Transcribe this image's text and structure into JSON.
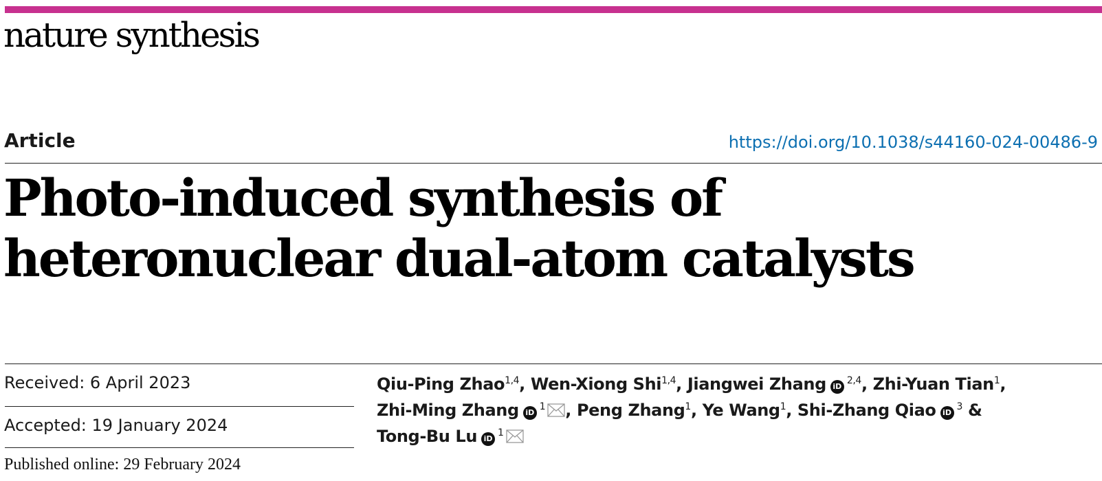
{
  "header": {
    "journal": "nature synthesis",
    "accent_color": "#c7318f"
  },
  "article": {
    "type": "Article",
    "doi": "https://doi.org/10.1038/s44160-024-00486-9",
    "title": "Photo-induced synthesis of heteronuclear dual-atom catalysts",
    "link_color": "#0c6fb1"
  },
  "dates": {
    "received": "Received: 6 April 2023",
    "accepted": "Accepted: 19 January 2024",
    "published": "Published online: 29 February 2024"
  },
  "authors": [
    {
      "name": "Qiu-Ping Zhao",
      "aff": "1,4",
      "orcid": false,
      "email": false
    },
    {
      "name": "Wen-Xiong Shi",
      "aff": "1,4",
      "orcid": false,
      "email": false
    },
    {
      "name": "Jiangwei Zhang",
      "aff": "2,4",
      "orcid": true,
      "email": false
    },
    {
      "name": "Zhi-Yuan Tian",
      "aff": "1",
      "orcid": false,
      "email": false
    },
    {
      "name": "Zhi-Ming Zhang",
      "aff": "1",
      "orcid": true,
      "email": true
    },
    {
      "name": "Peng Zhang",
      "aff": "1",
      "orcid": false,
      "email": false
    },
    {
      "name": "Ye Wang",
      "aff": "1",
      "orcid": false,
      "email": false
    },
    {
      "name": "Shi-Zhang Qiao",
      "aff": "3",
      "orcid": true,
      "email": false
    },
    {
      "name": "Tong-Bu Lu",
      "aff": "1",
      "orcid": true,
      "email": true
    }
  ],
  "author_separator": ", ",
  "author_last_separator": " & ",
  "icons": {
    "orcid": "orcid-icon",
    "email": "envelope-icon",
    "orcid_glyph": "iD"
  }
}
